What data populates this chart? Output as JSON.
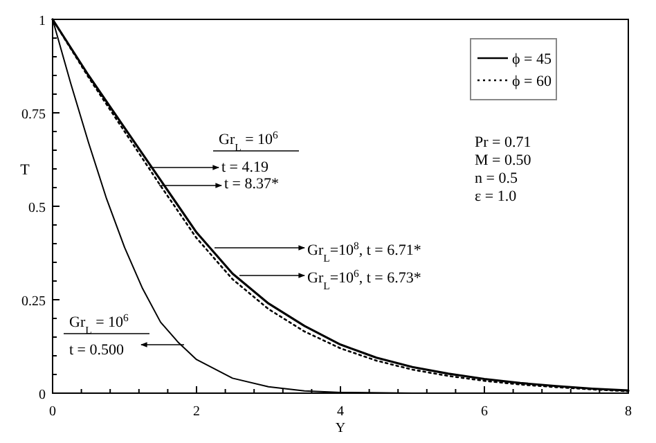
{
  "chart_data": {
    "type": "line",
    "xlabel": "Y",
    "ylabel": "T",
    "xlim": [
      0,
      8
    ],
    "ylim": [
      0,
      1
    ],
    "xticks": [
      0,
      {
        "value": 0.4,
        "label": null
      },
      {
        "value": 0.8,
        "label": null
      },
      {
        "value": 1.2,
        "label": null
      },
      {
        "value": 1.6,
        "label": null
      },
      2,
      {
        "value": 2.4,
        "label": null
      },
      {
        "value": 2.8,
        "label": null
      },
      {
        "value": 3.2,
        "label": null
      },
      {
        "value": 3.6,
        "label": null
      },
      4,
      {
        "value": 4.4,
        "label": null
      },
      {
        "value": 4.8,
        "label": null
      },
      {
        "value": 5.2,
        "label": null
      },
      {
        "value": 5.6,
        "label": null
      },
      6,
      {
        "value": 6.4,
        "label": null
      },
      {
        "value": 6.8,
        "label": null
      },
      {
        "value": 7.2,
        "label": null
      },
      {
        "value": 7.6,
        "label": null
      },
      8
    ],
    "yticks": [
      0,
      {
        "value": 0.05,
        "label": null
      },
      {
        "value": 0.1,
        "label": null
      },
      {
        "value": 0.15,
        "label": null
      },
      {
        "value": 0.2,
        "label": null
      },
      0.25,
      {
        "value": 0.3,
        "label": null
      },
      {
        "value": 0.35,
        "label": null
      },
      {
        "value": 0.4,
        "label": null
      },
      {
        "value": 0.45,
        "label": null
      },
      0.5,
      {
        "value": 0.55,
        "label": null
      },
      {
        "value": 0.6,
        "label": null
      },
      {
        "value": 0.65,
        "label": null
      },
      {
        "value": 0.7,
        "label": null
      },
      0.75,
      {
        "value": 0.8,
        "label": null
      },
      {
        "value": 0.85,
        "label": null
      },
      {
        "value": 0.9,
        "label": null
      },
      {
        "value": 0.95,
        "label": null
      },
      {
        "value": 1,
        "label": "1"
      }
    ],
    "legend": "top right",
    "grid": false,
    "series": [
      {
        "name": "ϕ = 45",
        "color": "#000000",
        "line_style": "solid",
        "x": [
          0,
          0.5,
          1,
          1.5,
          2,
          2.5,
          3,
          3.5,
          4,
          4.5,
          5,
          5.5,
          6,
          6.5,
          7,
          7.5,
          8
        ],
        "values": [
          1,
          0.85,
          0.71,
          0.57,
          0.43,
          0.32,
          0.24,
          0.18,
          0.13,
          0.095,
          0.07,
          0.052,
          0.038,
          0.027,
          0.019,
          0.012,
          0.007
        ]
      },
      {
        "name": "ϕ = 60",
        "color": "#000000",
        "line_style": "dotted",
        "x": [
          0,
          0.5,
          1,
          1.5,
          2,
          2.5,
          3,
          3.5,
          4,
          4.5,
          5,
          5.5,
          6,
          6.5,
          7,
          7.5,
          8
        ],
        "values": [
          1,
          0.845,
          0.7,
          0.555,
          0.415,
          0.305,
          0.225,
          0.165,
          0.12,
          0.087,
          0.063,
          0.046,
          0.033,
          0.023,
          0.016,
          0.01,
          0.005
        ]
      },
      {
        "color": "#000000",
        "line_style": "solid",
        "x": [
          0,
          0.25,
          0.5,
          0.75,
          1,
          1.25,
          1.5,
          1.75,
          2,
          2.5,
          3,
          3.5,
          4,
          5,
          6,
          7,
          8
        ],
        "values": [
          1,
          0.83,
          0.67,
          0.52,
          0.39,
          0.28,
          0.19,
          0.135,
          0.09,
          0.04,
          0.017,
          0.006,
          0.002,
          0,
          0,
          0,
          0
        ]
      }
    ],
    "annotations": [
      "Gr$_{L}$ = 10$^{6}$",
      "t = 4.19",
      "t = 8.37*",
      "Gr$_{L}$=10$^{8}$,  t = 6.71*",
      "Gr$_{L}$=10$^{6}$,  t = 6.73*",
      "Gr$_{L}$ = 10$^{6}$",
      "t = 0.500",
      "Pr = 0.71",
      "M = 0.50",
      "n = 0.5",
      "ε = 1.0"
    ]
  }
}
